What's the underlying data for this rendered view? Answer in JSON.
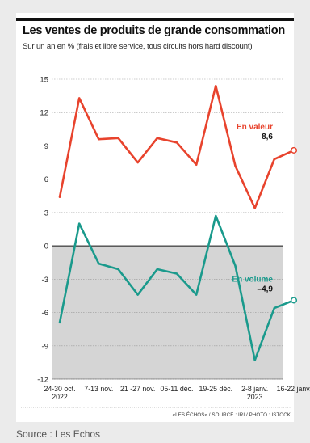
{
  "source_caption": "Source : Les Echos",
  "credit": "«LES ÉCHOS» / SOURCE : IRI / PHOTO : ISTOCK",
  "colors": {
    "valeur": "#e8432d",
    "volume": "#1a9a8c",
    "negative_area": "#d5d5d5"
  },
  "chart_data": {
    "type": "line",
    "title": "Les ventes de produits de grande consommation",
    "subtitle": "Sur un an en % (frais et libre service, tous circuits hors hard discount)",
    "ylim": [
      -12,
      15
    ],
    "y_ticks": [
      "15",
      "12",
      "9",
      "6",
      "3",
      "0",
      "-3",
      "-6",
      "-9",
      "-12"
    ],
    "x_tick_labels": [
      [
        "24-30 oct.",
        "2022"
      ],
      [
        "7-13 nov."
      ],
      [
        "21 -27 nov."
      ],
      [
        "05-11 déc."
      ],
      [
        "19-25 déc."
      ],
      [
        "2-8 janv.",
        "2023"
      ],
      [
        "16-22 janv."
      ]
    ],
    "grid": true,
    "series": [
      {
        "name": "En valeur",
        "end_label": "8,6",
        "values": [
          4.4,
          13.3,
          9.6,
          9.7,
          7.5,
          9.7,
          9.3,
          7.3,
          14.4,
          7.2,
          3.4,
          7.8,
          8.6
        ]
      },
      {
        "name": "En volume",
        "end_label": "–4,9",
        "values": [
          -6.9,
          2.0,
          -1.6,
          -2.1,
          -4.4,
          -2.1,
          -2.5,
          -4.4,
          2.7,
          -1.8,
          -10.3,
          -5.6,
          -4.9
        ]
      }
    ]
  }
}
